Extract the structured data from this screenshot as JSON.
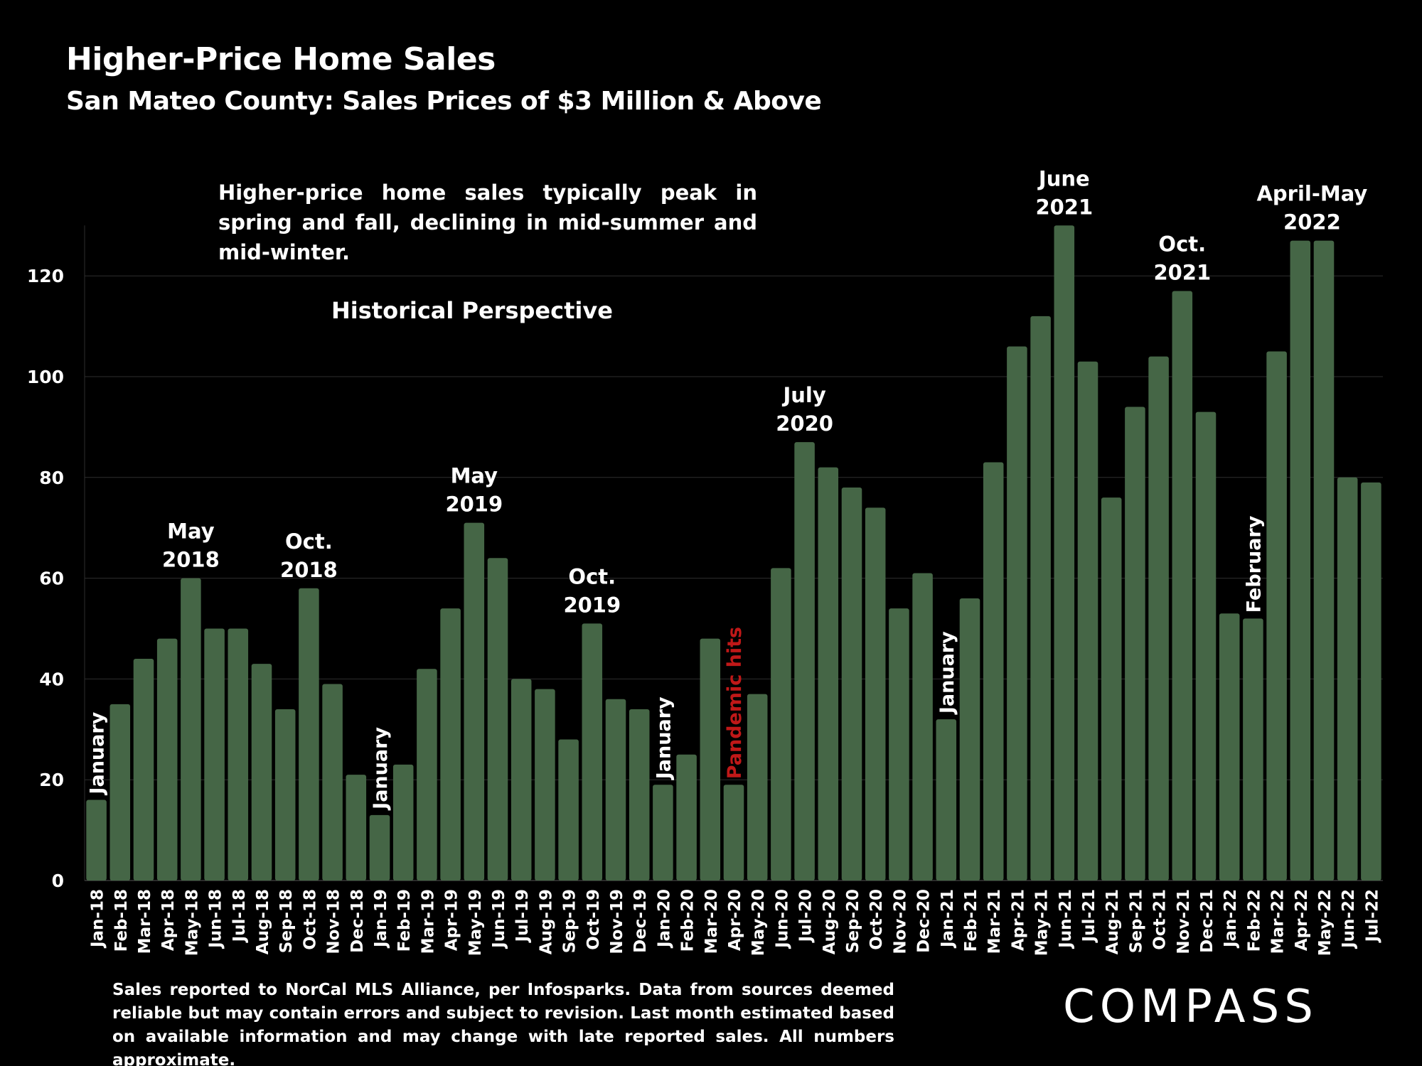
{
  "header": {
    "title": "Higher-Price Home Sales",
    "subtitle": "San Mateo County: Sales Prices of $3 Million & Above"
  },
  "note": "Higher-price home sales typically peak in spring and fall, declining in mid-summer and mid-winter.",
  "section_label": "Historical Perspective",
  "footer": "Sales reported to NorCal MLS Alliance, per Infosparks. Data from sources deemed reliable but may contain errors and subject to revision. Last month estimated based on available information and may change with late reported sales. All numbers approximate.",
  "logo": "COMPASS",
  "colors": {
    "background": "#000000",
    "bar": "#456646",
    "grid": "#2e2e2e",
    "text": "#ffffff",
    "highlight": "#c01818"
  },
  "chart_data": {
    "type": "bar",
    "title": "Higher-Price Home Sales",
    "subtitle": "San Mateo County: Sales Prices of $3 Million & Above",
    "xlabel": "",
    "ylabel": "",
    "ylim": [
      0,
      130
    ],
    "yticks": [
      0,
      20,
      40,
      60,
      80,
      100,
      120
    ],
    "grid": true,
    "legend": "none",
    "categories": [
      "Jan-18",
      "Feb-18",
      "Mar-18",
      "Apr-18",
      "May-18",
      "Jun-18",
      "Jul-18",
      "Aug-18",
      "Sep-18",
      "Oct-18",
      "Nov-18",
      "Dec-18",
      "Jan-19",
      "Feb-19",
      "Mar-19",
      "Apr-19",
      "May-19",
      "Jun-19",
      "Jul-19",
      "Aug-19",
      "Sep-19",
      "Oct-19",
      "Nov-19",
      "Dec-19",
      "Jan-20",
      "Feb-20",
      "Mar-20",
      "Apr-20",
      "May-20",
      "Jun-20",
      "Jul-20",
      "Aug-20",
      "Sep-20",
      "Oct-20",
      "Nov-20",
      "Dec-20",
      "Jan-21",
      "Feb-21",
      "Mar-21",
      "Apr-21",
      "May-21",
      "Jun-21",
      "Jul-21",
      "Aug-21",
      "Sep-21",
      "Oct-21",
      "Nov-21",
      "Dec-21",
      "Jan-22",
      "Feb-22",
      "Mar-22",
      "Apr-22",
      "May-22",
      "Jun-22",
      "Jul-22"
    ],
    "values": [
      16,
      35,
      44,
      48,
      60,
      50,
      50,
      43,
      34,
      58,
      39,
      21,
      13,
      23,
      42,
      54,
      71,
      64,
      40,
      38,
      28,
      51,
      36,
      34,
      19,
      25,
      48,
      19,
      37,
      62,
      87,
      82,
      78,
      74,
      54,
      61,
      32,
      56,
      83,
      106,
      112,
      130,
      103,
      76,
      94,
      104,
      117,
      93,
      53,
      52,
      105,
      127,
      127,
      80,
      79
    ],
    "annotations": [
      {
        "text": "January",
        "index": 0,
        "orientation": "vertical",
        "color": "#ffffff"
      },
      {
        "text": "May 2018",
        "lines": [
          "May",
          "2018"
        ],
        "index": 4,
        "orientation": "horizontal",
        "color": "#ffffff"
      },
      {
        "text": "Oct. 2018",
        "lines": [
          "Oct.",
          "2018"
        ],
        "index": 9,
        "orientation": "horizontal",
        "color": "#ffffff"
      },
      {
        "text": "January",
        "index": 12,
        "orientation": "vertical",
        "color": "#ffffff"
      },
      {
        "text": "May 2019",
        "lines": [
          "May",
          "2019"
        ],
        "index": 16,
        "orientation": "horizontal",
        "color": "#ffffff"
      },
      {
        "text": "Oct. 2019",
        "lines": [
          "Oct.",
          "2019"
        ],
        "index": 21,
        "orientation": "horizontal",
        "color": "#ffffff"
      },
      {
        "text": "January",
        "index": 24,
        "orientation": "vertical",
        "color": "#ffffff"
      },
      {
        "text": "Pandemic hits",
        "index": 27,
        "orientation": "vertical",
        "color": "#c01818"
      },
      {
        "text": "July 2020",
        "lines": [
          "July",
          "2020"
        ],
        "index": 30,
        "orientation": "horizontal",
        "color": "#ffffff"
      },
      {
        "text": "January",
        "index": 36,
        "orientation": "vertical",
        "color": "#ffffff"
      },
      {
        "text": "June 2021",
        "lines": [
          "June",
          "2021"
        ],
        "index": 41,
        "orientation": "horizontal",
        "color": "#ffffff"
      },
      {
        "text": "Oct. 2021",
        "lines": [
          "Oct.",
          "2021"
        ],
        "index": 46,
        "orientation": "horizontal",
        "color": "#ffffff"
      },
      {
        "text": "February",
        "index": 49,
        "orientation": "vertical",
        "color": "#ffffff"
      },
      {
        "text": "April-May 2022",
        "lines": [
          "April-May",
          "2022"
        ],
        "index": 51.5,
        "orientation": "horizontal",
        "color": "#ffffff"
      }
    ]
  }
}
